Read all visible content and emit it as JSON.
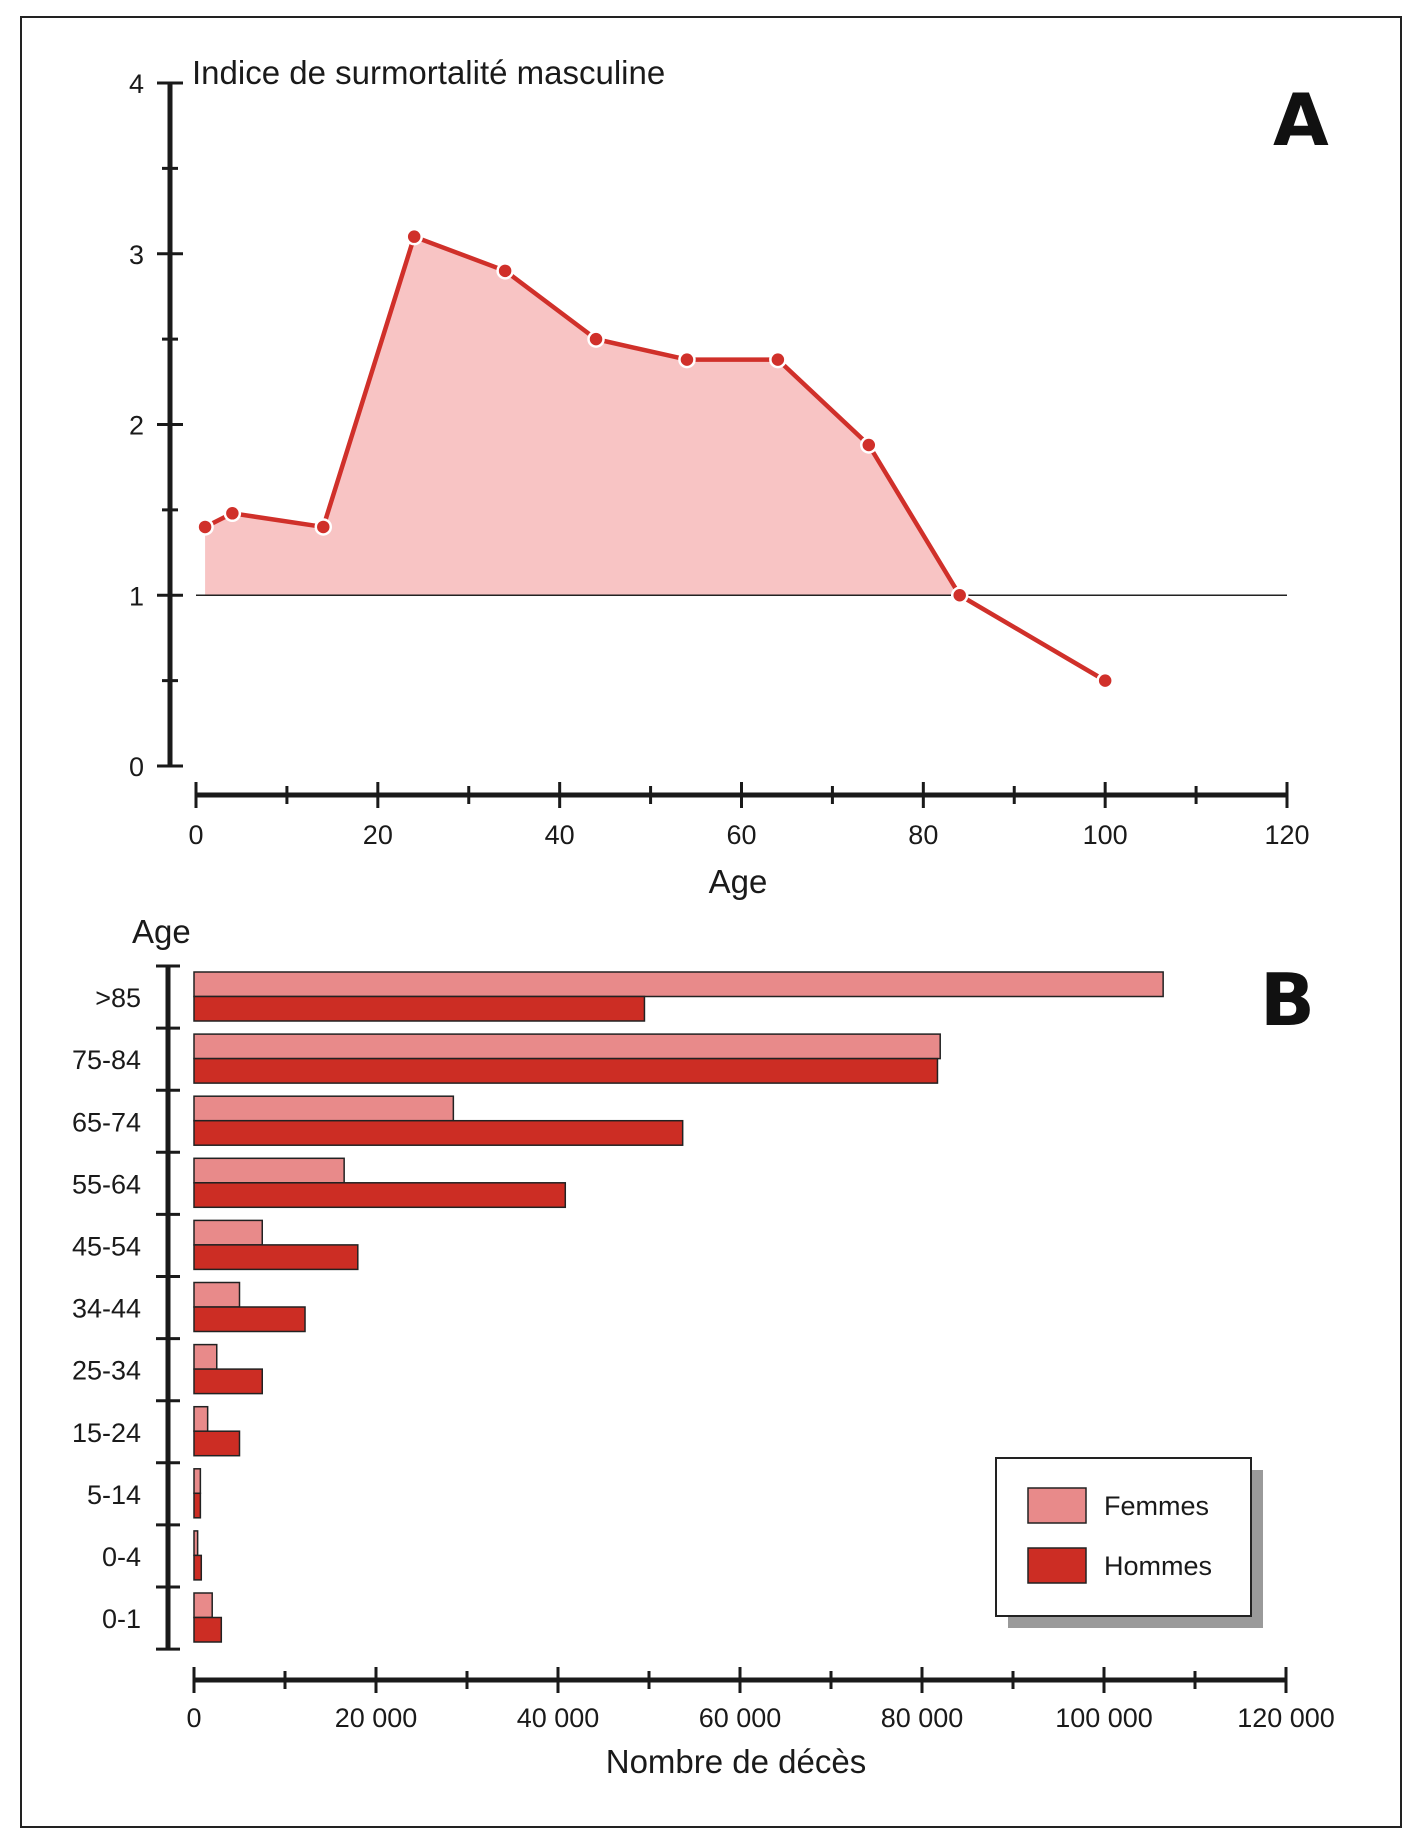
{
  "colors": {
    "line": "#d0302a",
    "area": "#f8c4c4",
    "femmes": "#e88a8a",
    "hommes": "#cc2d24",
    "axis": "#1a1a1a",
    "frame": "#222222"
  },
  "chart_data": [
    {
      "panel": "A",
      "type": "area",
      "title": "Indice de surmortalité masculine",
      "xlabel": "Age",
      "ylabel": "Indice de surmortalité masculine",
      "xlim": [
        0,
        120
      ],
      "ylim": [
        0,
        4
      ],
      "x_ticks": [
        "0",
        "20",
        "40",
        "60",
        "80",
        "100",
        "120"
      ],
      "y_ticks": [
        "0",
        "1",
        "2",
        "3",
        "4"
      ],
      "baseline": 1,
      "x": [
        1,
        4,
        14,
        24,
        34,
        44,
        54,
        64,
        74,
        84,
        100
      ],
      "y": [
        1.4,
        1.48,
        1.4,
        3.1,
        2.9,
        2.5,
        2.38,
        2.38,
        1.88,
        1.0,
        0.5
      ]
    },
    {
      "panel": "B",
      "type": "bar",
      "orientation": "horizontal",
      "xlabel": "Nombre de décès",
      "ylabel": "Age",
      "xlim": [
        0,
        120000
      ],
      "x_ticks": [
        "0",
        "20 000",
        "40 000",
        "60 000",
        "80 000",
        "100 000",
        "120 000"
      ],
      "categories": [
        ">85",
        "75-84",
        "65-74",
        "55-64",
        "45-54",
        "34-44",
        "25-34",
        "15-24",
        "5-14",
        "0-4",
        "0-1"
      ],
      "series": [
        {
          "name": "Femmes",
          "values": [
            106500,
            82000,
            28500,
            16500,
            7500,
            5000,
            2500,
            1500,
            700,
            400,
            2000
          ]
        },
        {
          "name": "Hommes",
          "values": [
            49500,
            81700,
            53700,
            40800,
            18000,
            12200,
            7500,
            5000,
            700,
            800,
            3000
          ]
        }
      ],
      "legend": {
        "position": "bottom-right",
        "entries": [
          "Femmes",
          "Hommes"
        ]
      }
    }
  ]
}
